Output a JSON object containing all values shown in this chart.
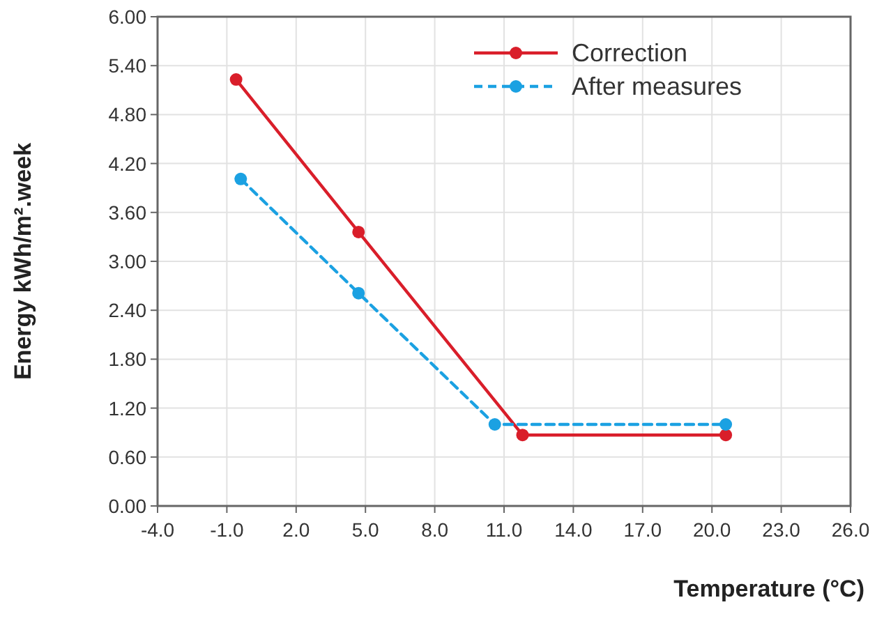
{
  "chart_data": {
    "type": "line",
    "xlabel": "Temperature (°C)",
    "ylabel": "Energy kWh/m².week",
    "xlim": [
      -4,
      26
    ],
    "xticks": [
      {
        "value": -4,
        "label": "-4.0"
      },
      {
        "value": -1,
        "label": "-1.0"
      },
      {
        "value": 2,
        "label": "2.0"
      },
      {
        "value": 5,
        "label": "5.0"
      },
      {
        "value": 8,
        "label": "8.0"
      },
      {
        "value": 11,
        "label": "11.0"
      },
      {
        "value": 14,
        "label": "14.0"
      },
      {
        "value": 17,
        "label": "17.0"
      },
      {
        "value": 20,
        "label": "20.0"
      },
      {
        "value": 23,
        "label": "23.0"
      },
      {
        "value": 26,
        "label": "26.0"
      }
    ],
    "ylim": [
      0,
      6
    ],
    "yticks": [
      {
        "value": 0,
        "label": "0.00"
      },
      {
        "value": 0.6,
        "label": "0.60"
      },
      {
        "value": 1.2,
        "label": "1.20"
      },
      {
        "value": 1.8,
        "label": "1.80"
      },
      {
        "value": 2.4,
        "label": "2.40"
      },
      {
        "value": 3,
        "label": "3.00"
      },
      {
        "value": 3.6,
        "label": "3.60"
      },
      {
        "value": 4.2,
        "label": "4.20"
      },
      {
        "value": 4.8,
        "label": "4.80"
      },
      {
        "value": 5.4,
        "label": "5.40"
      },
      {
        "value": 6,
        "label": "6.00"
      }
    ],
    "grid": true,
    "legend": "top right",
    "marker": "circle",
    "series": [
      {
        "name": "Correction",
        "color": "#d91e2a",
        "line_style": "solid",
        "x": [
          -0.6,
          4.7,
          11.8,
          20.6
        ],
        "values": [
          5.23,
          3.36,
          0.87,
          0.87
        ]
      },
      {
        "name": "After measures",
        "color": "#1ba1e2",
        "line_style": "dashed",
        "x": [
          -0.4,
          4.7,
          10.6,
          20.6
        ],
        "values": [
          4.01,
          2.61,
          1.0,
          1.0
        ]
      }
    ]
  }
}
